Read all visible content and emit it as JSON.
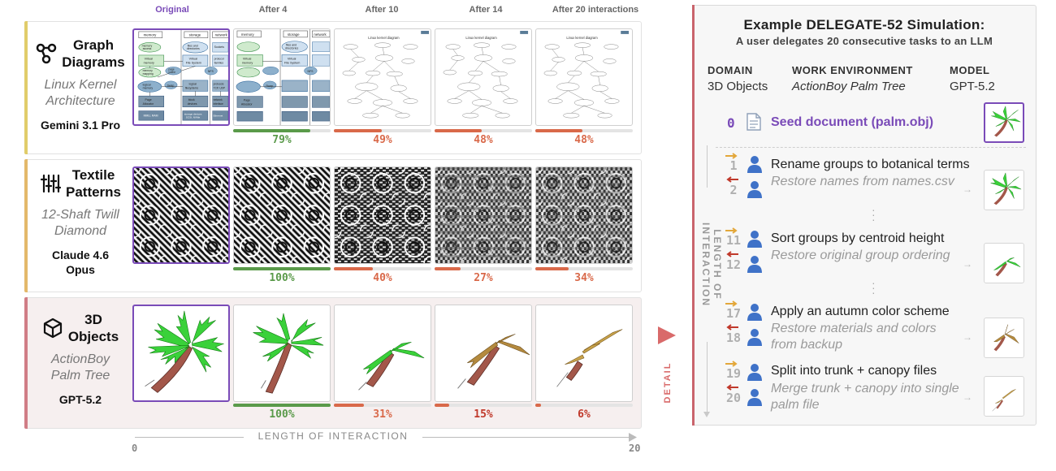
{
  "columns": [
    "Original",
    "After 4",
    "After 10",
    "After 14",
    "After 20 interactions"
  ],
  "rows": [
    {
      "icon": "graph-icon",
      "title_lines": [
        "Graph",
        "Diagrams"
      ],
      "subtitle_lines": [
        "Linux Kernel",
        "Architecture"
      ],
      "model_lines": [
        "Gemini 3.1 Pro"
      ],
      "scores": [
        "79%",
        "49%",
        "48%",
        "48%"
      ],
      "score_values": [
        0.79,
        0.49,
        0.48,
        0.48
      ]
    },
    {
      "icon": "sliders-icon",
      "title_lines": [
        "Textile",
        "Patterns"
      ],
      "subtitle_lines": [
        "12-Shaft Twill",
        "Diamond"
      ],
      "model_lines": [
        "Claude 4.6",
        "Opus"
      ],
      "scores": [
        "100%",
        "40%",
        "27%",
        "34%"
      ],
      "score_values": [
        1.0,
        0.4,
        0.27,
        0.34
      ]
    },
    {
      "icon": "cube-icon",
      "title_lines": [
        "3D",
        "Objects"
      ],
      "subtitle_lines": [
        "ActionBoy",
        "Palm Tree"
      ],
      "model_lines": [
        "GPT-5.2"
      ],
      "scores": [
        "100%",
        "31%",
        "15%",
        "6%"
      ],
      "score_values": [
        1.0,
        0.31,
        0.15,
        0.06
      ]
    }
  ],
  "diagram_text": {
    "graph_nodes": [
      "memory",
      "storage",
      "network",
      "memory access",
      "files and directories",
      "Sockets",
      "Virtual memory",
      "Virtual File System",
      "protocol families",
      "memory mapping",
      "page cache",
      "NFS",
      "logical memory",
      "Swap",
      "logical filesystems",
      "protocols TCP, UDP",
      "Page Allocator",
      "block devices",
      "network interface",
      "MMU, RAM",
      "storage devices SCSI, NVMe",
      "Ethernet, Wi-Fi"
    ],
    "sketch_title": "Linux kernel diagram"
  },
  "axis": {
    "title": "LENGTH OF INTERACTION",
    "start": "0",
    "end": "20"
  },
  "detail": {
    "label": "DETAIL"
  },
  "colors": {
    "purple": "#7a4bb8",
    "score_good": "#5a9a4a",
    "score_bad": "#d9694a",
    "score_worse": "#c0392b",
    "row_accents": [
      "#e0cc6a",
      "#e3b86a",
      "#d07d86"
    ]
  },
  "panel": {
    "title": "Example DELEGATE-52 Simulation:",
    "subtitle": "A user delegates 20 consecutive tasks to an LLM",
    "headers": [
      "DOMAIN",
      "WORK ENVIRONMENT",
      "MODEL"
    ],
    "values": [
      "3D Objects",
      "ActionBoy Palm Tree",
      "GPT-5.2"
    ],
    "vaxis_label": "LENGTH OF INTERACTION",
    "seed": {
      "num": "0",
      "label": "Seed document (palm.obj)"
    },
    "steps": [
      {
        "num_fwd": "1",
        "fwd": "Rename groups to botanical terms",
        "num_back": "2",
        "back": "Restore names from names.csv"
      },
      {
        "num_fwd": "11",
        "fwd": "Sort groups by centroid height",
        "num_back": "12",
        "back": "Restore original group ordering"
      },
      {
        "num_fwd": "17",
        "fwd": "Apply an autumn color scheme",
        "num_back": "18",
        "back": "Restore materials and colors from backup"
      },
      {
        "num_fwd": "19",
        "fwd": "Split into trunk + canopy files",
        "num_back": "20",
        "back": "Merge trunk + canopy into single palm file"
      }
    ]
  }
}
